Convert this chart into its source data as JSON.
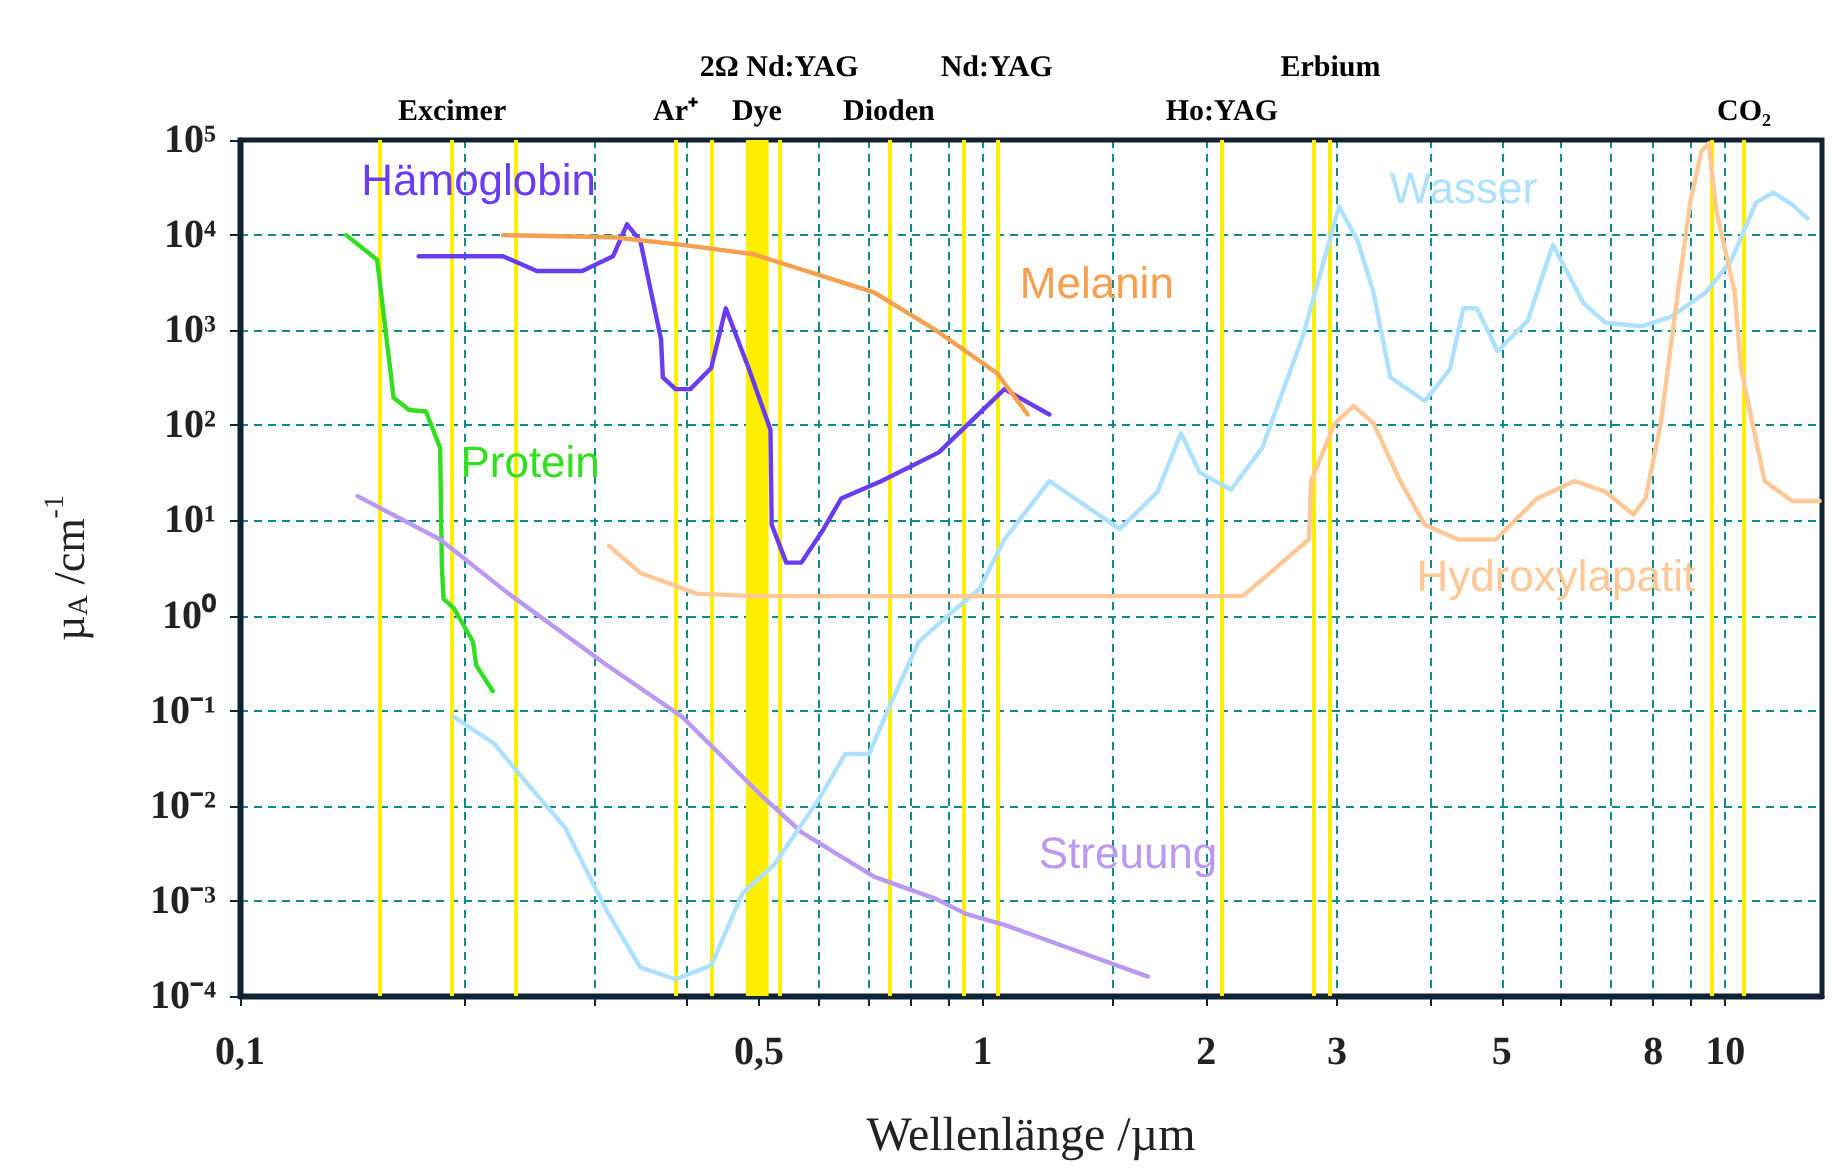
{
  "chart_data": {
    "type": "line",
    "xlabel": "Wellenlänge /µm",
    "ylabel": "µ$_{A}$ /cm$^{-1}$",
    "log": "xy",
    "grid": true,
    "line_style": "solid",
    "xlim": [
      0.1,
      13.5
    ],
    "xticks": [
      {
        "value": 0.1,
        "label": "0,1"
      },
      {
        "value": 0.2,
        "label": null
      },
      {
        "value": 0.3,
        "label": null
      },
      {
        "value": 0.4,
        "label": null
      },
      {
        "value": 0.5,
        "label": "0,5"
      },
      {
        "value": 0.6,
        "label": null
      },
      {
        "value": 0.7,
        "label": null
      },
      {
        "value": 0.8,
        "label": null
      },
      {
        "value": 0.9,
        "label": null
      },
      1,
      {
        "value": 1.5,
        "label": null
      },
      2,
      3,
      {
        "value": 4,
        "label": null
      },
      5,
      {
        "value": 6,
        "label": null
      },
      {
        "value": 7,
        "label": null
      },
      8,
      {
        "value": 9,
        "label": null
      },
      10
    ],
    "ylim": [
      0.0001,
      100000
    ],
    "yticks": [
      {
        "value": 0.0001,
        "label": "10⁻⁴"
      },
      {
        "value": 0.001,
        "label": "10⁻³"
      },
      {
        "value": 0.01,
        "label": "10⁻²"
      },
      {
        "value": 0.1,
        "label": "10⁻¹"
      },
      {
        "value": 1,
        "label": "10⁰"
      },
      {
        "value": 10,
        "label": "10¹"
      },
      {
        "value": 100,
        "label": "10²"
      },
      {
        "value": 1000,
        "label": "10³"
      },
      {
        "value": 10000,
        "label": "10⁴"
      },
      {
        "value": 100000,
        "label": "10⁵"
      }
    ],
    "series": [
      {
        "name": "Hämoglobin",
        "color": "#6a3cf0",
        "x": [
          0.174,
          0.226,
          0.251,
          0.289,
          0.318,
          0.332,
          0.346,
          0.369,
          0.371,
          0.386,
          0.404,
          0.431,
          0.451,
          0.484,
          0.518,
          0.52,
          0.544,
          0.57,
          0.61,
          0.645,
          0.731,
          0.873,
          1.07,
          1.23
        ],
        "values": [
          6000,
          6000,
          4200,
          4200,
          6000,
          13000,
          8700,
          800,
          320,
          240,
          240,
          400,
          1700,
          400,
          90,
          9,
          3.6,
          3.6,
          8,
          17,
          26,
          52,
          240,
          130
        ]
      },
      {
        "name": "Melanin",
        "color": "#f5a050",
        "x": [
          0.226,
          0.318,
          0.394,
          0.491,
          0.714,
          0.865,
          1.045,
          1.15
        ],
        "values": [
          10000,
          9500,
          7900,
          6300,
          2500,
          1000,
          355,
          130
        ]
      },
      {
        "name": "Protein",
        "color": "#33dd22",
        "x": [
          0.139,
          0.153,
          0.161,
          0.169,
          0.178,
          0.186,
          0.187,
          0.188,
          0.194,
          0.206,
          0.208,
          0.219
        ],
        "values": [
          10000,
          5500,
          195,
          145,
          140,
          58,
          3.2,
          1.5,
          1.2,
          0.53,
          0.3,
          0.16
        ]
      },
      {
        "name": "Streuung",
        "color": "#bb99f0",
        "x": [
          0.144,
          0.186,
          0.23,
          0.312,
          0.394,
          0.508,
          0.57,
          0.714,
          0.865,
          0.95,
          1.07,
          1.67
        ],
        "values": [
          18,
          6.3,
          1.7,
          0.3,
          0.086,
          0.012,
          0.0053,
          0.0018,
          0.00105,
          0.00073,
          0.00056,
          0.00016
        ]
      },
      {
        "name": "Wasser",
        "color": "#aee0ff",
        "x": [
          0.194,
          0.22,
          0.241,
          0.274,
          0.312,
          0.346,
          0.386,
          0.431,
          0.475,
          0.524,
          0.603,
          0.653,
          0.703,
          0.745,
          0.82,
          0.898,
          0.99,
          1.07,
          1.23,
          1.53,
          1.72,
          1.85,
          1.96,
          2.16,
          2.38,
          2.7,
          3.02,
          3.2,
          3.36,
          3.54,
          3.94,
          4.26,
          4.44,
          4.63,
          4.94,
          5.42,
          5.86,
          6.45,
          6.9,
          7.71,
          8.45,
          9.42,
          10.2,
          11,
          11.6,
          12.3,
          12.9
        ],
        "values": [
          0.086,
          0.045,
          0.019,
          0.0059,
          0.00078,
          0.0002,
          0.00015,
          0.00021,
          0.0012,
          0.0024,
          0.012,
          0.035,
          0.035,
          0.1,
          0.53,
          1,
          1.9,
          6.3,
          26,
          8.1,
          20,
          83,
          32,
          21,
          58,
          870,
          20000,
          8700,
          2500,
          320,
          180,
          390,
          1700,
          1700,
          600,
          1260,
          7900,
          1900,
          1200,
          1100,
          1380,
          2500,
          5500,
          22000,
          28000,
          21000,
          15000
        ]
      },
      {
        "name": "Hydroxylapatit",
        "color": "#ffc896",
        "x": [
          0.314,
          0.346,
          0.412,
          0.491,
          1.07,
          2.24,
          2.75,
          2.77,
          2.98,
          3.16,
          3.36,
          3.65,
          3.94,
          4.37,
          4.91,
          5.58,
          6.27,
          6.9,
          7.52,
          7.81,
          8.19,
          8.57,
          8.97,
          9.29,
          9.5,
          9.73,
          10.3,
          10.5,
          11.3,
          12.3,
          13.4
        ],
        "values": [
          5.4,
          2.8,
          1.7,
          1.6,
          1.6,
          1.6,
          6.3,
          26,
          105,
          160,
          105,
          26,
          9,
          6.3,
          6.3,
          17,
          26,
          20,
          11.5,
          17,
          105,
          1600,
          22000,
          76000,
          92000,
          18000,
          2500,
          400,
          26,
          16,
          16
        ]
      }
    ],
    "ref_lines": [
      {
        "axis": "x",
        "value": 0.154,
        "label": null,
        "color": "#ffee00"
      },
      {
        "axis": "x",
        "value": 0.193,
        "label": "Excimer",
        "color": "#ffee00"
      },
      {
        "axis": "x",
        "value": 0.235,
        "label": null,
        "color": "#ffee00"
      },
      {
        "axis": "x",
        "value": 0.386,
        "label": "Ar⁺",
        "color": "#ffee00"
      },
      {
        "axis": "x",
        "value": 0.431,
        "label": null,
        "color": "#ffee00"
      },
      {
        "axis": "x",
        "value": 0.532,
        "label": "2Ω Nd:YAG",
        "color": "#ffee00"
      },
      {
        "axis": "x",
        "value": 0.748,
        "label": "Dioden",
        "color": "#ffee00"
      },
      {
        "axis": "x",
        "value": 0.944,
        "label": null,
        "color": "#ffee00"
      },
      {
        "axis": "x",
        "value": 1.045,
        "label": "Nd:YAG",
        "color": "#ffee00"
      },
      {
        "axis": "x",
        "value": 2.1,
        "label": "Ho:YAG",
        "color": "#ffee00"
      },
      {
        "axis": "x",
        "value": 2.79,
        "label": null,
        "color": "#ffee00"
      },
      {
        "axis": "x",
        "value": 2.94,
        "label": "Erbium",
        "color": "#ffee00"
      },
      {
        "axis": "x",
        "value": 9.6,
        "label": null,
        "color": "#ffee00"
      },
      {
        "axis": "x",
        "value": 10.6,
        "label": "CO₂",
        "color": "#ffee00"
      }
    ],
    "bands": [
      {
        "axis": "x",
        "from": 0.48,
        "to": 0.515,
        "label": "Dye",
        "color": "#ffee00"
      }
    ]
  }
}
